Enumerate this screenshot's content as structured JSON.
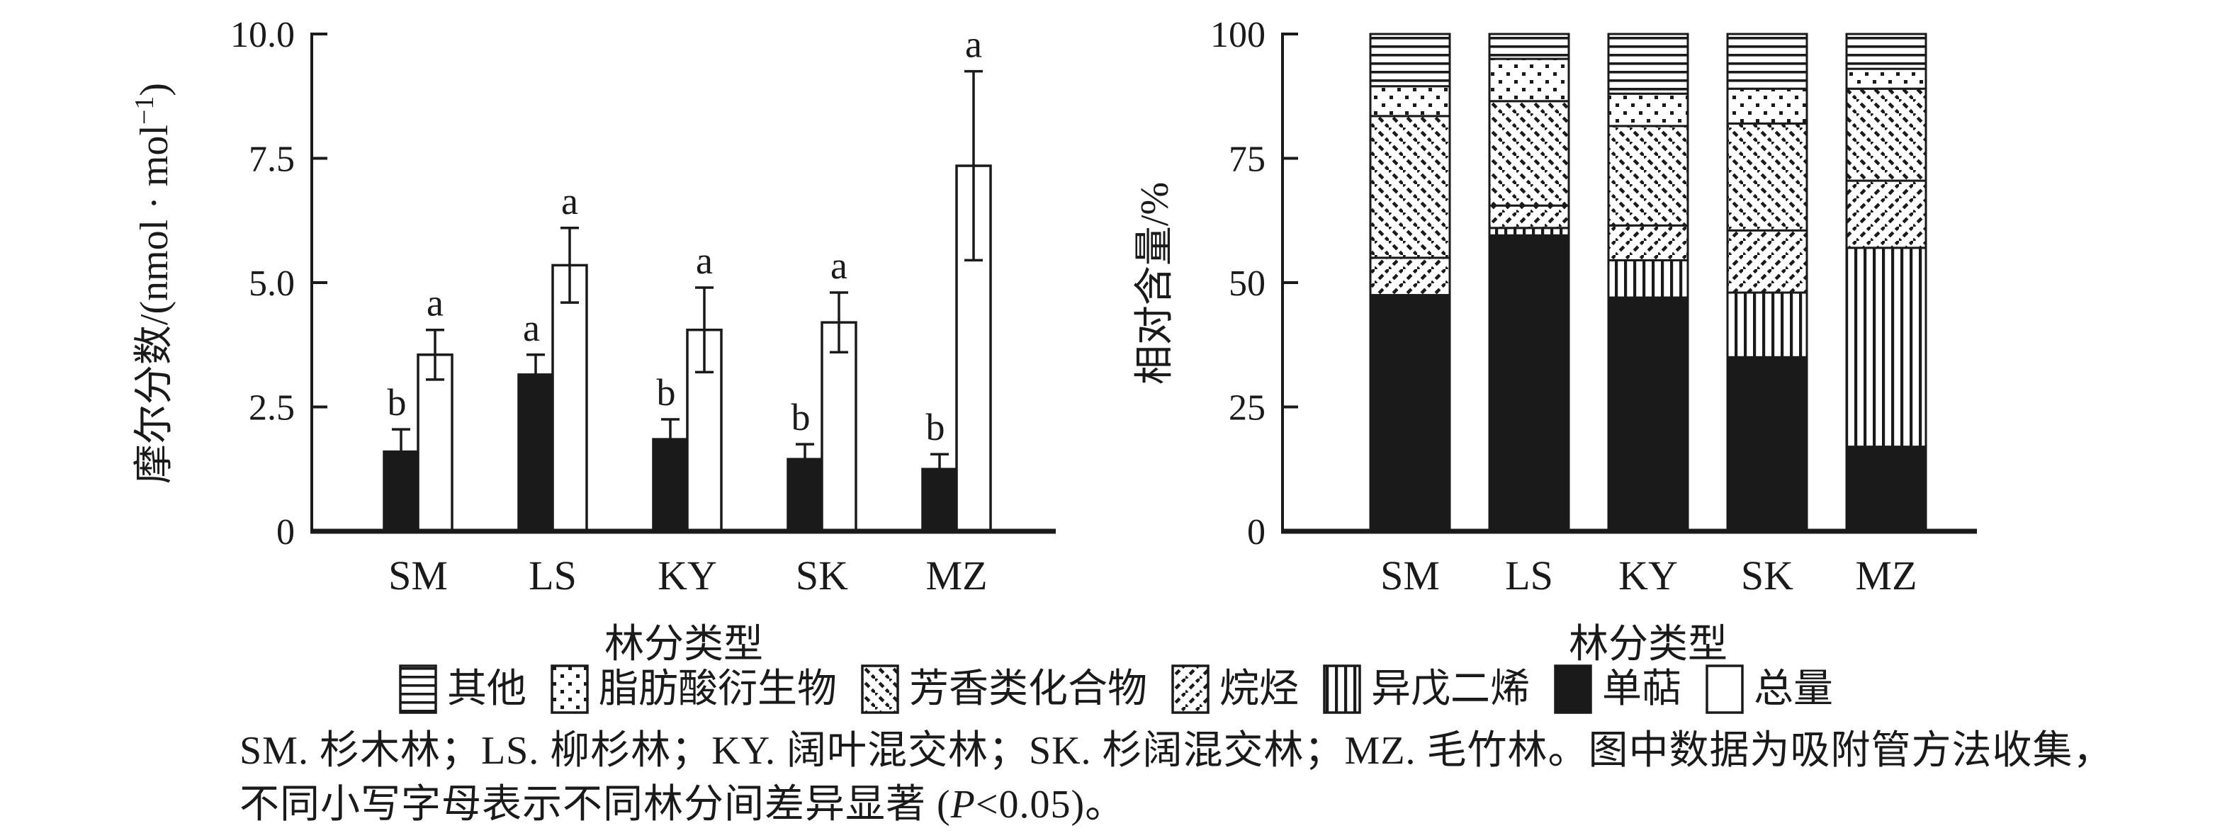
{
  "figure": {
    "background": "#ffffff",
    "ink": "#1a1a1a"
  },
  "chart_data": [
    {
      "id": "molar-fraction",
      "panel": "left",
      "type": "bar",
      "title": "",
      "ylabel": "摩尔分数/(nmol · mol⁻¹)",
      "xlabel": "林分类型",
      "ylim": [
        0,
        10
      ],
      "yticks": [
        0,
        2.5,
        5,
        7.5,
        10
      ],
      "ytick_labels": [
        "0",
        "2.5",
        "5.0",
        "7.5",
        "10.0"
      ],
      "categories": [
        "SM",
        "LS",
        "KY",
        "SK",
        "MZ"
      ],
      "grid": false,
      "legend_position": "none",
      "series": [
        {
          "key": "monoterpene",
          "name": "单萜",
          "fill": "solid",
          "values": [
            1.6,
            3.15,
            1.85,
            1.45,
            1.25
          ],
          "errors": [
            0.45,
            0.4,
            0.4,
            0.3,
            0.3
          ],
          "sig_letters": [
            "b",
            "a",
            "b",
            "b",
            "b"
          ]
        },
        {
          "key": "total",
          "name": "总量",
          "fill": "white",
          "values": [
            3.55,
            5.35,
            4.05,
            4.2,
            7.35
          ],
          "errors": [
            0.5,
            0.75,
            0.85,
            0.6,
            1.9
          ],
          "sig_letters": [
            "a",
            "a",
            "a",
            "a",
            "a"
          ]
        }
      ]
    },
    {
      "id": "relative-content",
      "panel": "right",
      "type": "stacked-bar",
      "title": "",
      "ylabel": "相对含量/%",
      "xlabel": "林分类型",
      "ylim": [
        0,
        100
      ],
      "yticks": [
        0,
        25,
        50,
        75,
        100
      ],
      "ytick_labels": [
        "0",
        "25",
        "50",
        "75",
        "100"
      ],
      "categories": [
        "SM",
        "LS",
        "KY",
        "SK",
        "MZ"
      ],
      "grid": false,
      "stack_order": "bottom-to-top",
      "series": [
        {
          "key": "monoterpene",
          "name": "单萜",
          "pattern": "solid",
          "values": [
            47.5,
            59.5,
            47,
            35,
            17
          ]
        },
        {
          "key": "isoprene",
          "name": "异戊二烯",
          "pattern": "vertical-lines",
          "values": [
            0,
            1.5,
            7.5,
            13,
            40
          ]
        },
        {
          "key": "alkanes",
          "name": "烷烃",
          "pattern": "diagonal-forward",
          "values": [
            7.5,
            4.5,
            7,
            12.5,
            13.5
          ]
        },
        {
          "key": "aromatics",
          "name": "芳香类化合物",
          "pattern": "diagonal-back",
          "values": [
            28.5,
            21,
            20,
            21.5,
            18.5
          ]
        },
        {
          "key": "fatty-acid-derivatives",
          "name": "脂肪酸衍生物",
          "pattern": "dots",
          "values": [
            6,
            8.5,
            6.5,
            7,
            4
          ]
        },
        {
          "key": "others",
          "name": "其他",
          "pattern": "horizontal-lines",
          "values": [
            10.5,
            5,
            12,
            11,
            7
          ]
        }
      ]
    }
  ],
  "legend": {
    "items": [
      {
        "key": "others",
        "label": "其他",
        "pattern": "horizontal-lines"
      },
      {
        "key": "fatty-acid-derivatives",
        "label": "脂肪酸衍生物",
        "pattern": "dots"
      },
      {
        "key": "aromatics",
        "label": "芳香类化合物",
        "pattern": "diagonal-back"
      },
      {
        "key": "alkanes",
        "label": "烷烃",
        "pattern": "diagonal-forward"
      },
      {
        "key": "isoprene",
        "label": "异戊二烯",
        "pattern": "vertical-lines"
      },
      {
        "key": "monoterpenes",
        "label": "单萜",
        "pattern": "solid"
      },
      {
        "key": "total",
        "label": "总量",
        "pattern": "white"
      }
    ]
  },
  "caption": {
    "line1": "SM. 杉木林；LS. 柳杉林；KY. 阔叶混交林；SK. 杉阔混交林；MZ. 毛竹林。图中数据为吸附管方法收集，",
    "line2_parts": {
      "before": "不同小写字母表示不同林分间差异显著 (",
      "italic": "P",
      "after": "<0.05)。"
    }
  }
}
